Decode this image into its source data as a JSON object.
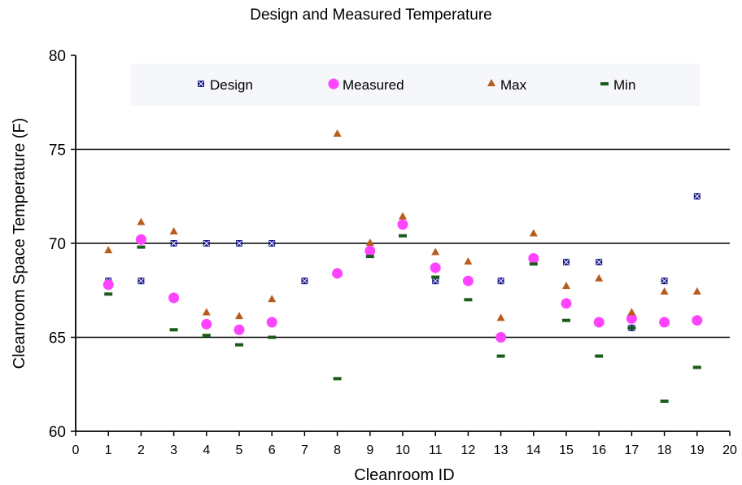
{
  "chart_data": {
    "type": "scatter",
    "title": "Design and Measured Temperature",
    "xlabel": "Cleanroom ID",
    "ylabel": "Cleanroom Space Temperature (F)",
    "xlim": [
      0,
      20
    ],
    "ylim": [
      60,
      80
    ],
    "x_ticks": [
      0,
      1,
      2,
      3,
      4,
      5,
      6,
      7,
      8,
      9,
      10,
      11,
      12,
      13,
      14,
      15,
      16,
      17,
      18,
      19,
      20
    ],
    "y_ticks": [
      60,
      65,
      70,
      75,
      80
    ],
    "grid": "horizontal",
    "legend_position": "top",
    "series": [
      {
        "name": "Design",
        "marker": "x-square",
        "color": "#1c1c8c",
        "points": [
          [
            1,
            68
          ],
          [
            2,
            68
          ],
          [
            3,
            70
          ],
          [
            4,
            70
          ],
          [
            5,
            70
          ],
          [
            6,
            70
          ],
          [
            7,
            68
          ],
          [
            9,
            69.5
          ],
          [
            11,
            68
          ],
          [
            13,
            68
          ],
          [
            14,
            69
          ],
          [
            15,
            69
          ],
          [
            16,
            69
          ],
          [
            17,
            65.5
          ],
          [
            18,
            68
          ],
          [
            19,
            72.5
          ]
        ]
      },
      {
        "name": "Measured",
        "marker": "circle",
        "color": "#ff44ff",
        "points": [
          [
            1,
            67.8
          ],
          [
            2,
            70.2
          ],
          [
            3,
            67.1
          ],
          [
            4,
            65.7
          ],
          [
            5,
            65.4
          ],
          [
            6,
            65.8
          ],
          [
            8,
            68.4
          ],
          [
            9,
            69.6
          ],
          [
            10,
            71
          ],
          [
            11,
            68.7
          ],
          [
            12,
            68
          ],
          [
            13,
            65
          ],
          [
            14,
            69.2
          ],
          [
            15,
            66.8
          ],
          [
            16,
            65.8
          ],
          [
            17,
            66
          ],
          [
            18,
            65.8
          ],
          [
            19,
            65.9
          ]
        ]
      },
      {
        "name": "Max",
        "marker": "triangle",
        "color": "#b85c1e",
        "points": [
          [
            1,
            69.6
          ],
          [
            2,
            71.1
          ],
          [
            3,
            70.6
          ],
          [
            4,
            66.3
          ],
          [
            5,
            66.1
          ],
          [
            6,
            67
          ],
          [
            8,
            75.8
          ],
          [
            9,
            70
          ],
          [
            10,
            71.4
          ],
          [
            11,
            69.5
          ],
          [
            12,
            69
          ],
          [
            13,
            66
          ],
          [
            14,
            70.5
          ],
          [
            15,
            67.7
          ],
          [
            16,
            68.1
          ],
          [
            17,
            66.3
          ],
          [
            18,
            67.4
          ],
          [
            19,
            67.4
          ]
        ]
      },
      {
        "name": "Min",
        "marker": "dash",
        "color": "#1a5c1a",
        "points": [
          [
            1,
            67.3
          ],
          [
            2,
            69.8
          ],
          [
            3,
            65.4
          ],
          [
            4,
            65.1
          ],
          [
            5,
            64.6
          ],
          [
            6,
            65
          ],
          [
            8,
            62.8
          ],
          [
            9,
            69.3
          ],
          [
            10,
            70.4
          ],
          [
            11,
            68.2
          ],
          [
            12,
            67
          ],
          [
            13,
            64
          ],
          [
            14,
            68.9
          ],
          [
            15,
            65.9
          ],
          [
            16,
            64
          ],
          [
            17,
            65.5
          ],
          [
            18,
            61.6
          ],
          [
            19,
            63.4
          ]
        ]
      }
    ]
  }
}
